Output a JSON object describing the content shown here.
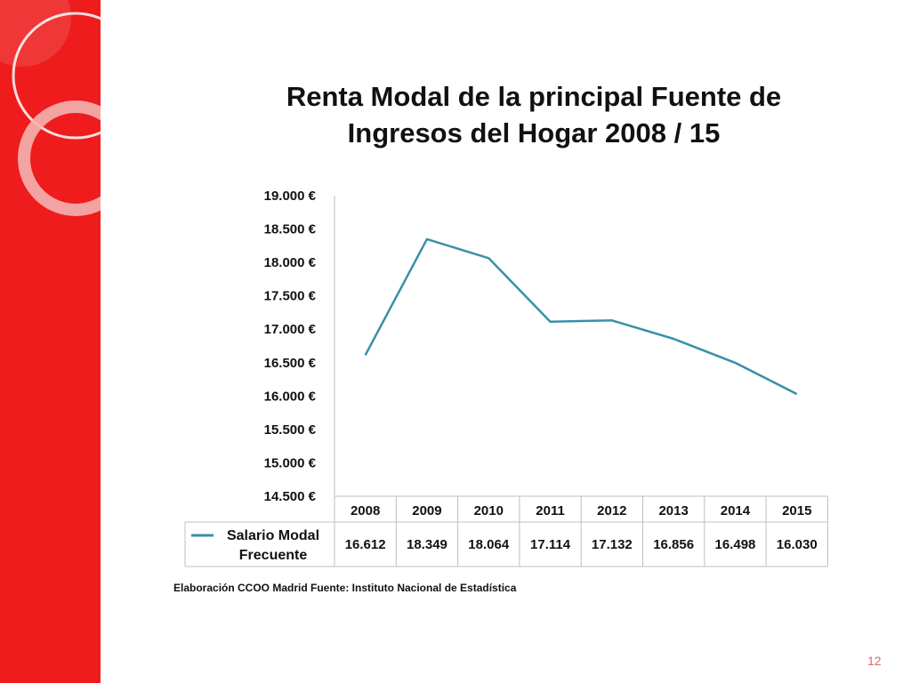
{
  "slide": {
    "title_lines": [
      "Renta  Modal de la principal Fuente de",
      "Ingresos del Hogar  2008 / 15"
    ],
    "source": "Elaboración CCOO Madrid Fuente: Instituto Nacional de Estadística",
    "page_number": "12"
  },
  "colors": {
    "side_band": "#ee1c1c",
    "series_line": "#3a8fa8"
  },
  "chart_data": {
    "type": "line",
    "title": "Renta  Modal de la principal Fuente de Ingresos del Hogar  2008 / 15",
    "categories": [
      "2008",
      "2009",
      "2010",
      "2011",
      "2012",
      "2013",
      "2014",
      "2015"
    ],
    "series": [
      {
        "name_lines": [
          "Salario Modal",
          "Frecuente"
        ],
        "name": "Salario Modal Frecuente",
        "values": [
          16612,
          18349,
          18064,
          17114,
          17132,
          16856,
          16498,
          16030
        ],
        "value_labels": [
          "16.612",
          "18.349",
          "18.064",
          "17.114",
          "17.132",
          "16.856",
          "16.498",
          "16.030"
        ]
      }
    ],
    "ylim": [
      14500,
      19000
    ],
    "yticks": [
      19000,
      18500,
      18000,
      17500,
      17000,
      16500,
      16000,
      15500,
      15000,
      14500
    ],
    "ytick_labels": [
      "19.000 €",
      "18.500 €",
      "18.000 €",
      "17.500 €",
      "17.000 €",
      "16.500 €",
      "16.000 €",
      "15.500 €",
      "15.000 €",
      "14.500 €"
    ],
    "grid": false,
    "legend": "data-table-below",
    "xlabel": "",
    "ylabel": ""
  }
}
